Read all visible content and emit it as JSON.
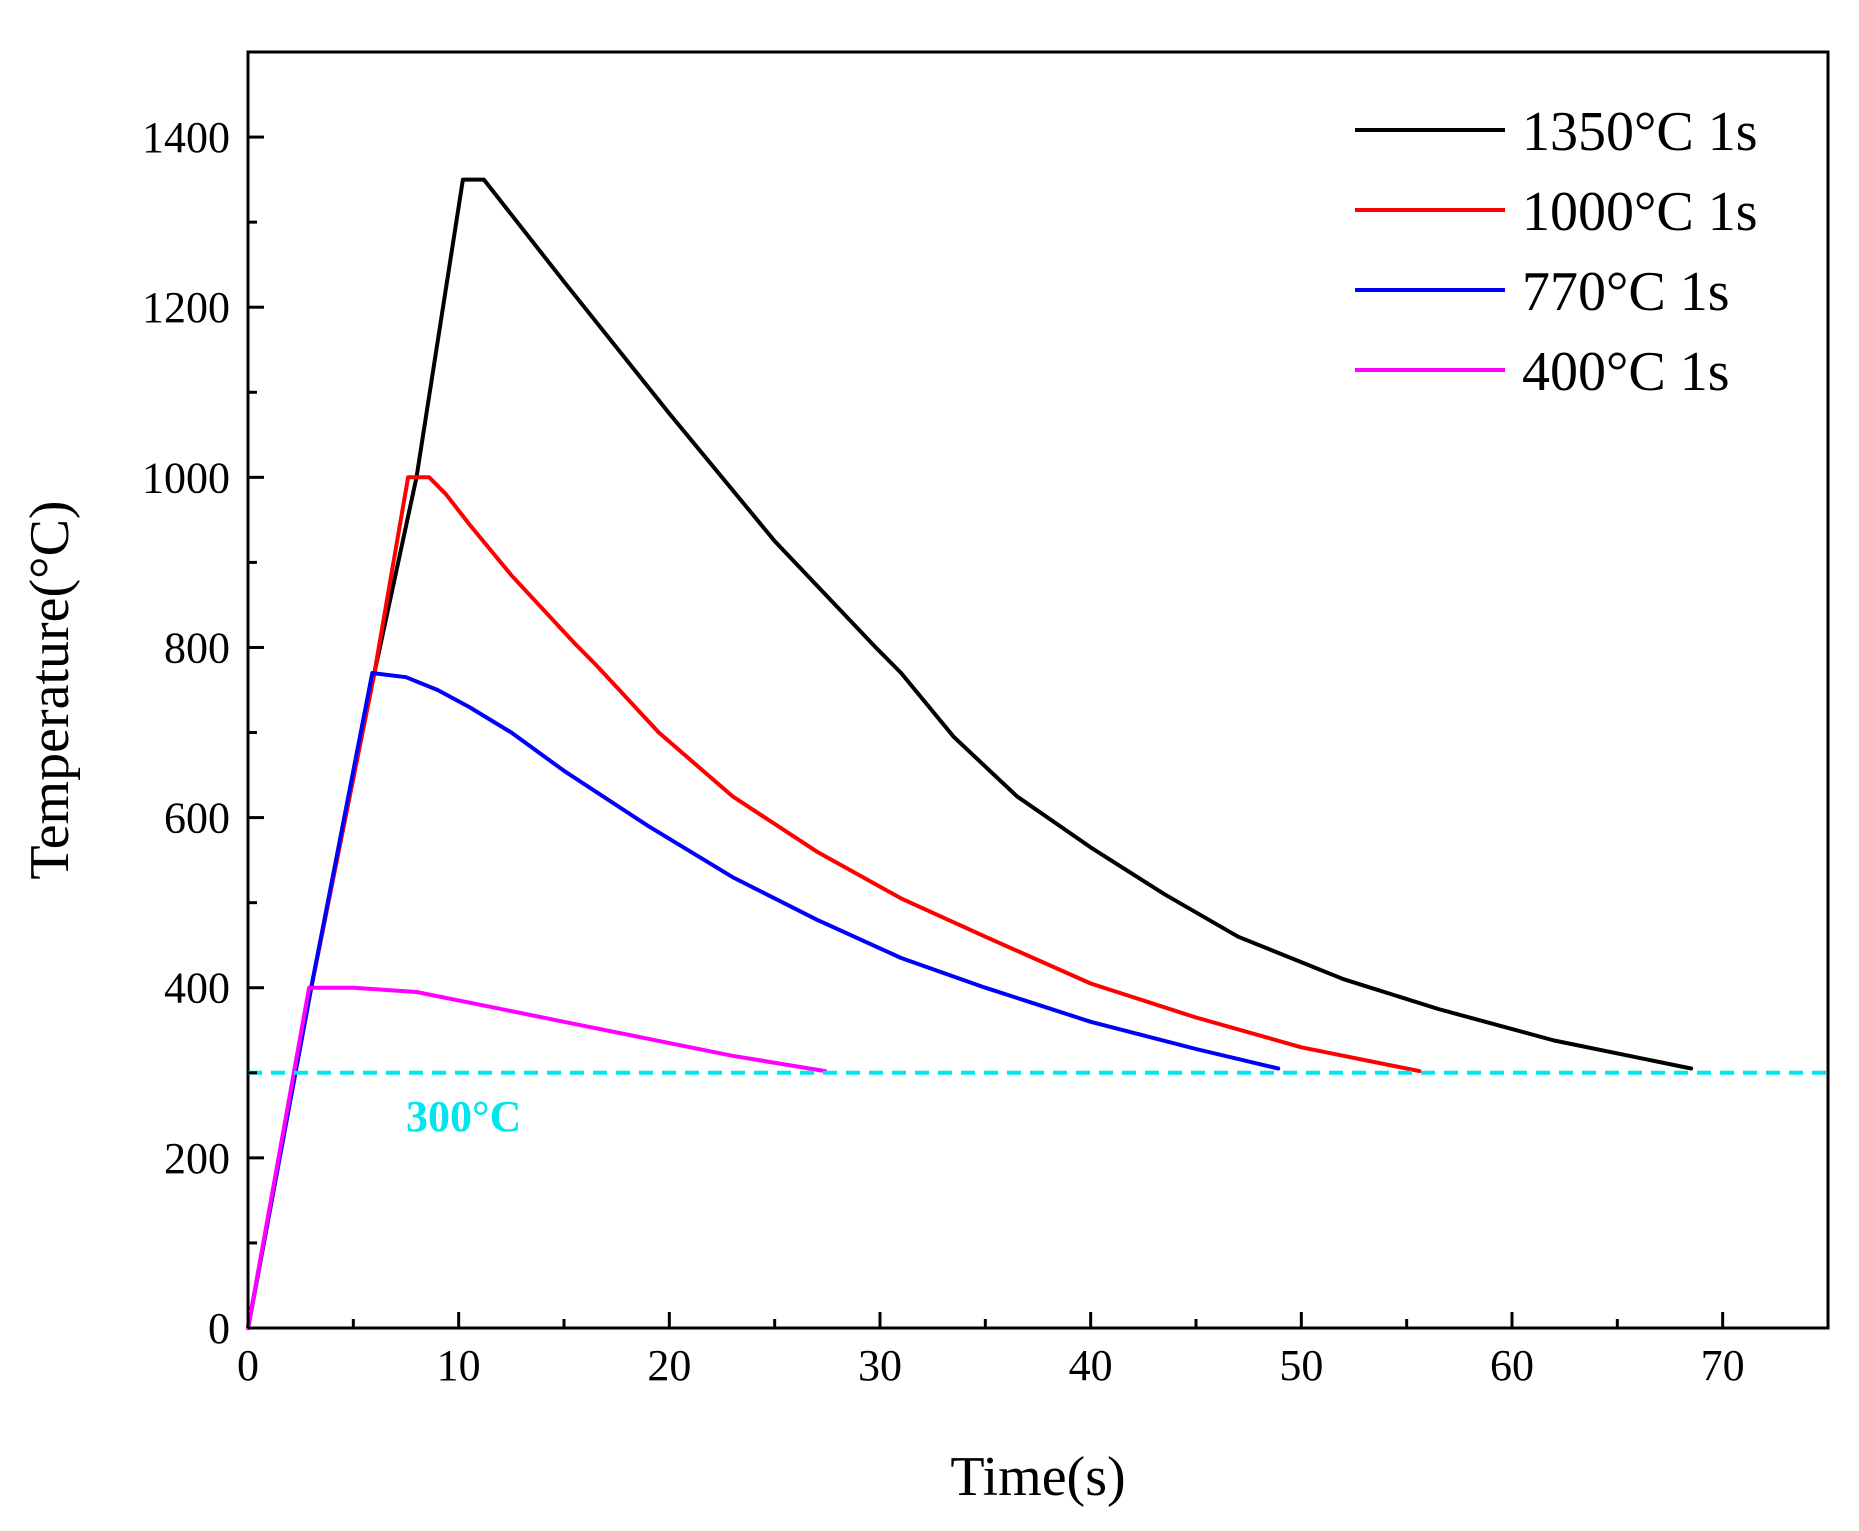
{
  "chart_data": {
    "type": "line",
    "title": "",
    "xlabel": "Time(s)",
    "ylabel": "Temperature(°C)",
    "xlim": [
      0,
      75
    ],
    "ylim": [
      0,
      1500
    ],
    "xticks": [
      0,
      10,
      20,
      30,
      40,
      50,
      60,
      70
    ],
    "xtick_labels": [
      "0",
      "10",
      "20",
      "30",
      "40",
      "50",
      "60",
      "70"
    ],
    "yticks": [
      0,
      200,
      400,
      600,
      800,
      1000,
      1200,
      1400
    ],
    "ytick_labels": [
      "0",
      "200",
      "400",
      "600",
      "800",
      "1000",
      "1200",
      "1400"
    ],
    "x_minor_step": 5,
    "y_minor_step": 100,
    "grid": false,
    "legend_position": "top-right",
    "series": [
      {
        "name": "1350°C 1s",
        "color": "#000000",
        "x": [
          0,
          3,
          6,
          8,
          10.2,
          11.2,
          15,
          20,
          25,
          29.8,
          31,
          33.5,
          36.5,
          40,
          43.5,
          47,
          52,
          56.5,
          62,
          68.5
        ],
        "y": [
          0,
          400,
          770,
          1000,
          1350,
          1350,
          1230,
          1075,
          925,
          800,
          770,
          695,
          625,
          565,
          510,
          460,
          410,
          375,
          338,
          305
        ]
      },
      {
        "name": "1000°C 1s",
        "color": "#ff0000",
        "x": [
          0,
          3,
          6,
          7.6,
          8.6,
          9.4,
          10.5,
          12.5,
          15.5,
          16.5,
          19.5,
          23,
          27,
          31,
          35,
          40,
          45,
          50,
          55.6
        ],
        "y": [
          0,
          400,
          770,
          1000,
          1000,
          980,
          945,
          885,
          805,
          780,
          700,
          625,
          560,
          505,
          460,
          405,
          365,
          330,
          302
        ]
      },
      {
        "name": "770°C 1s",
        "color": "#0000ff",
        "x": [
          0,
          3,
          5.9,
          7.5,
          9,
          10.5,
          12.5,
          15,
          19,
          23,
          27,
          31,
          35,
          40,
          45,
          48.9
        ],
        "y": [
          0,
          400,
          770,
          765,
          750,
          730,
          700,
          655,
          590,
          530,
          480,
          435,
          400,
          360,
          328,
          305
        ]
      },
      {
        "name": "400°C 1s",
        "color": "#ff00ff",
        "x": [
          0,
          2.9,
          5,
          8,
          11,
          15,
          19,
          23,
          27.4
        ],
        "y": [
          0,
          400,
          400,
          395,
          380,
          360,
          340,
          320,
          302
        ]
      }
    ],
    "reference_lines": [
      {
        "y": 300,
        "label": "300°C",
        "color": "#00e5ee",
        "style": "dashed"
      }
    ]
  }
}
